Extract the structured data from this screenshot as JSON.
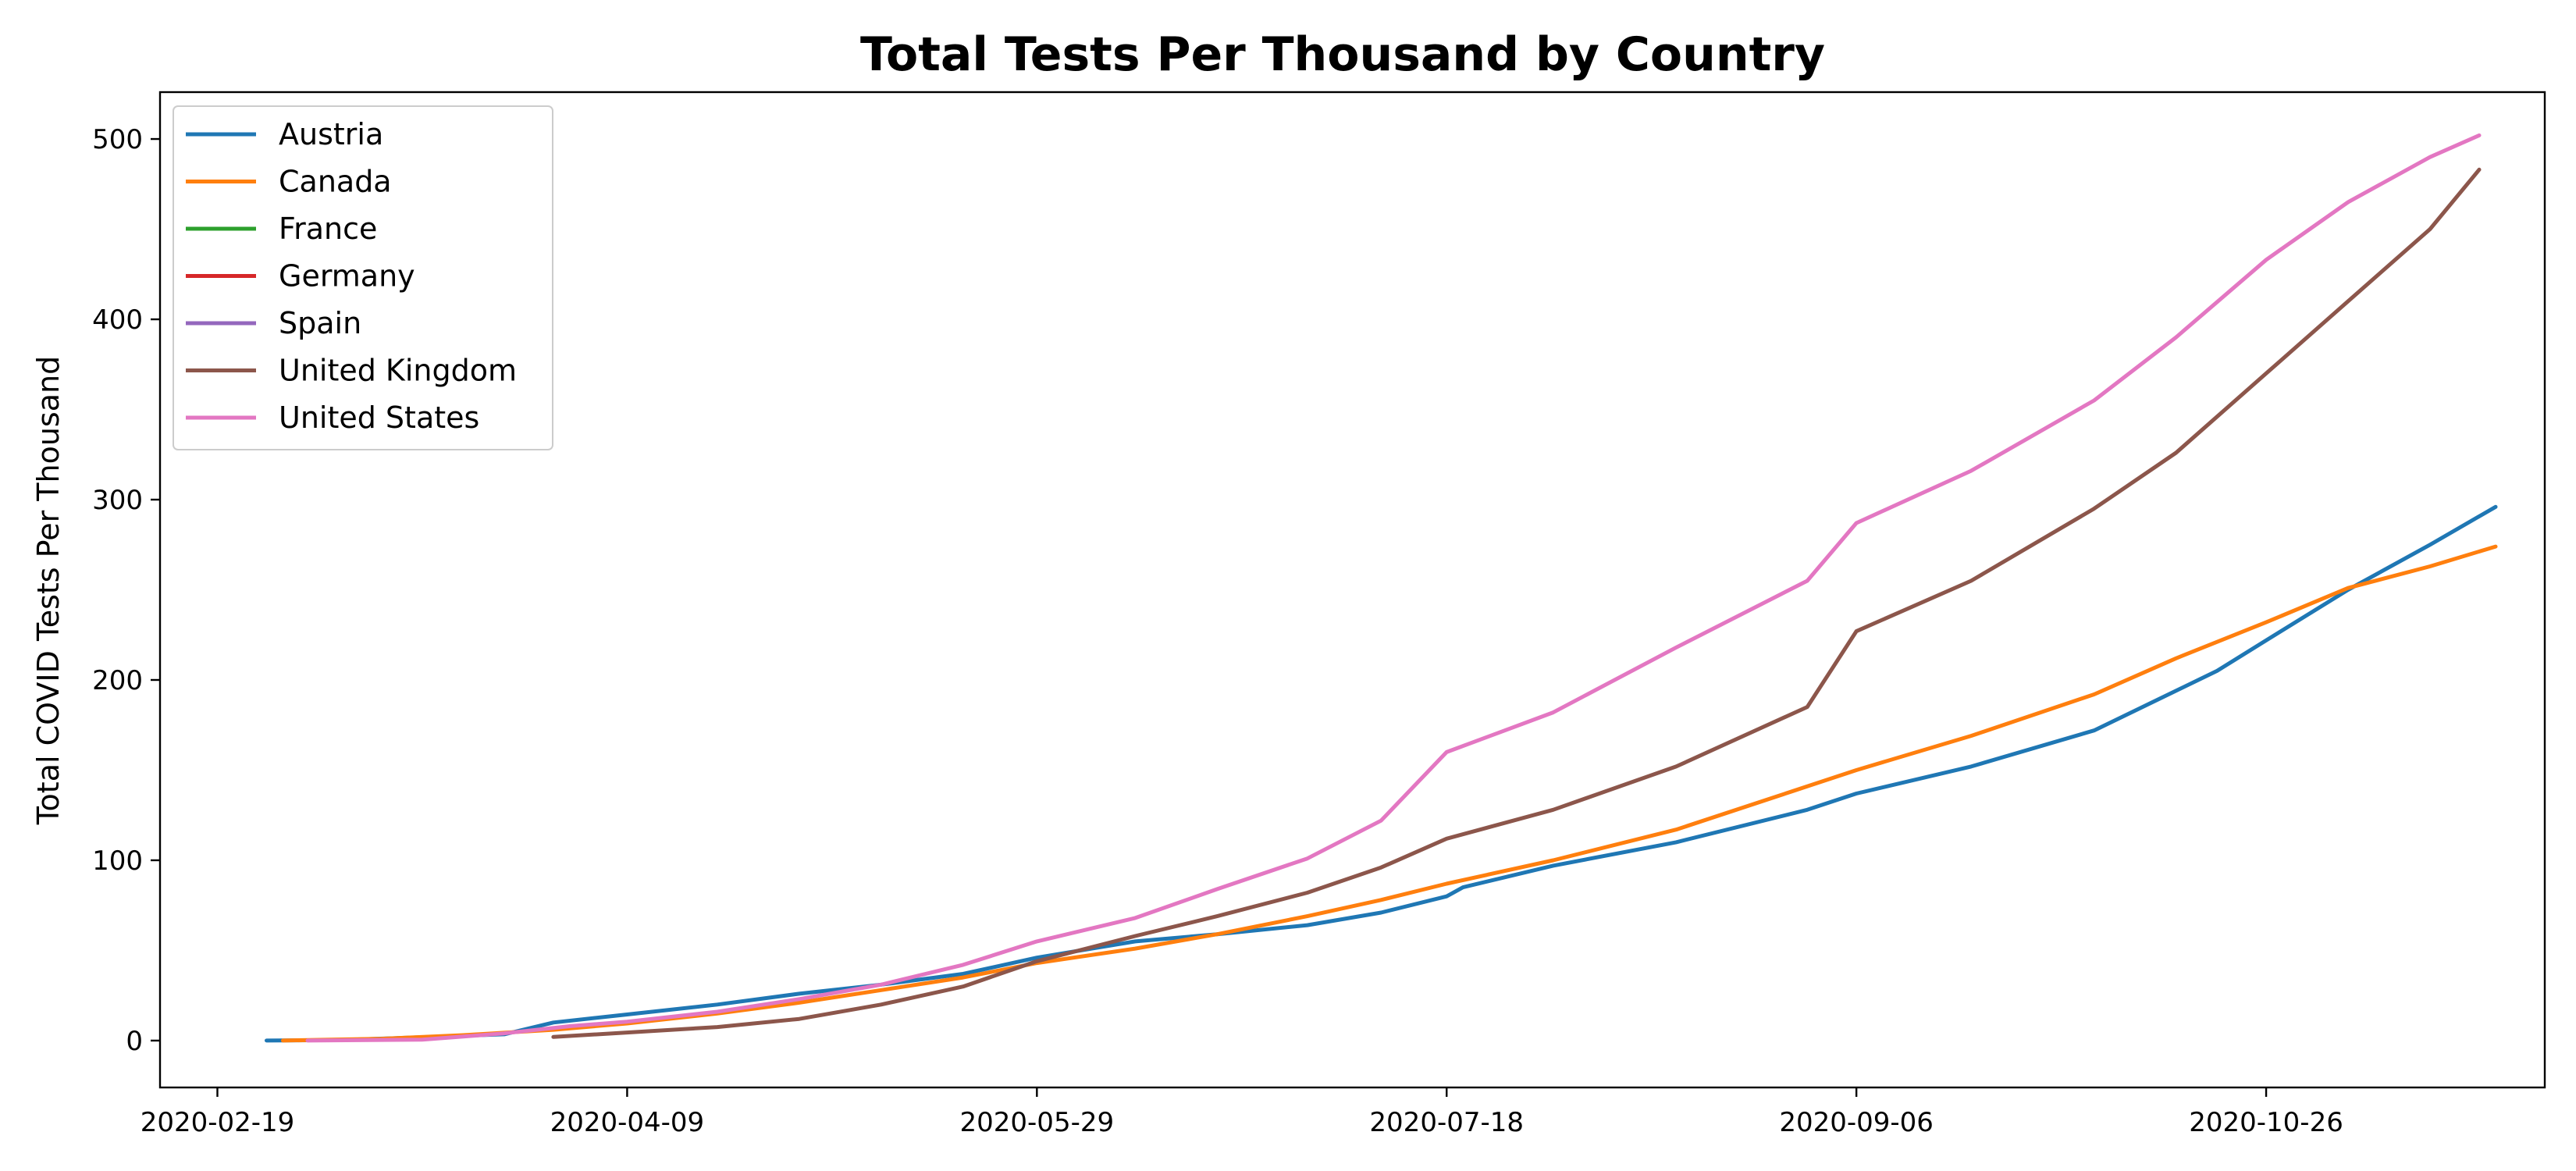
{
  "chart_data": {
    "type": "line",
    "title": "Total Tests Per Thousand by Country",
    "xlabel": "",
    "ylabel": "Total COVID Tests Per Thousand",
    "x_ticks": [
      "2020-02-19",
      "2020-04-09",
      "2020-05-29",
      "2020-07-18",
      "2020-09-06",
      "2020-10-26"
    ],
    "y_ticks": [
      0,
      100,
      200,
      300,
      400,
      500
    ],
    "xlim": [
      "2020-02-12",
      "2020-11-29"
    ],
    "ylim": [
      -26,
      526
    ],
    "legend_position": "top-left",
    "grid": false,
    "series": [
      {
        "name": "Austria",
        "color": "#1f77b4",
        "points": [
          [
            "2020-02-25",
            0
          ],
          [
            "2020-03-05",
            0.3
          ],
          [
            "2020-03-25",
            3.5
          ],
          [
            "2020-03-31",
            10
          ],
          [
            "2020-04-09",
            14.5
          ],
          [
            "2020-04-20",
            20
          ],
          [
            "2020-04-30",
            26
          ],
          [
            "2020-05-10",
            31
          ],
          [
            "2020-05-20",
            37
          ],
          [
            "2020-05-29",
            46
          ],
          [
            "2020-06-10",
            55
          ],
          [
            "2020-06-20",
            59
          ],
          [
            "2020-07-01",
            64
          ],
          [
            "2020-07-10",
            71
          ],
          [
            "2020-07-18",
            80
          ],
          [
            "2020-07-20",
            85
          ],
          [
            "2020-07-31",
            97
          ],
          [
            "2020-08-15",
            110
          ],
          [
            "2020-08-31",
            128
          ],
          [
            "2020-09-06",
            137
          ],
          [
            "2020-09-20",
            152
          ],
          [
            "2020-10-05",
            172
          ],
          [
            "2020-10-20",
            205
          ],
          [
            "2020-10-26",
            222
          ],
          [
            "2020-11-05",
            250
          ],
          [
            "2020-11-15",
            275
          ],
          [
            "2020-11-23",
            296
          ]
        ]
      },
      {
        "name": "Canada",
        "color": "#ff7f0e",
        "points": [
          [
            "2020-02-27",
            0
          ],
          [
            "2020-03-10",
            1
          ],
          [
            "2020-03-20",
            3
          ],
          [
            "2020-03-31",
            6
          ],
          [
            "2020-04-09",
            9.5
          ],
          [
            "2020-04-20",
            15
          ],
          [
            "2020-04-30",
            21
          ],
          [
            "2020-05-10",
            28
          ],
          [
            "2020-05-20",
            35
          ],
          [
            "2020-05-29",
            43
          ],
          [
            "2020-06-10",
            51
          ],
          [
            "2020-06-20",
            59
          ],
          [
            "2020-07-01",
            69
          ],
          [
            "2020-07-10",
            78
          ],
          [
            "2020-07-18",
            87
          ],
          [
            "2020-07-31",
            100
          ],
          [
            "2020-08-15",
            117
          ],
          [
            "2020-08-31",
            141
          ],
          [
            "2020-09-06",
            150
          ],
          [
            "2020-09-20",
            169
          ],
          [
            "2020-10-05",
            192
          ],
          [
            "2020-10-15",
            212
          ],
          [
            "2020-10-26",
            232
          ],
          [
            "2020-11-05",
            251
          ],
          [
            "2020-11-15",
            263
          ],
          [
            "2020-11-23",
            274
          ]
        ]
      },
      {
        "name": "France",
        "color": "#2ca02c",
        "points": []
      },
      {
        "name": "Germany",
        "color": "#d62728",
        "points": []
      },
      {
        "name": "Spain",
        "color": "#9467bd",
        "points": []
      },
      {
        "name": "United Kingdom",
        "color": "#8c564b",
        "points": [
          [
            "2020-03-31",
            2
          ],
          [
            "2020-04-09",
            4.5
          ],
          [
            "2020-04-20",
            7.5
          ],
          [
            "2020-04-30",
            12
          ],
          [
            "2020-05-10",
            20
          ],
          [
            "2020-05-20",
            30
          ],
          [
            "2020-05-29",
            44
          ],
          [
            "2020-06-10",
            58
          ],
          [
            "2020-06-20",
            69
          ],
          [
            "2020-07-01",
            82
          ],
          [
            "2020-07-10",
            96
          ],
          [
            "2020-07-18",
            112
          ],
          [
            "2020-07-31",
            128
          ],
          [
            "2020-08-15",
            152
          ],
          [
            "2020-08-31",
            185
          ],
          [
            "2020-09-06",
            227
          ],
          [
            "2020-09-20",
            255
          ],
          [
            "2020-10-05",
            295
          ],
          [
            "2020-10-15",
            326
          ],
          [
            "2020-10-26",
            370
          ],
          [
            "2020-11-05",
            410
          ],
          [
            "2020-11-15",
            450
          ],
          [
            "2020-11-21",
            483
          ]
        ]
      },
      {
        "name": "United States",
        "color": "#e377c2",
        "points": [
          [
            "2020-03-01",
            0
          ],
          [
            "2020-03-15",
            0.5
          ],
          [
            "2020-03-25",
            4
          ],
          [
            "2020-04-02",
            8
          ],
          [
            "2020-04-09",
            10.5
          ],
          [
            "2020-04-20",
            16
          ],
          [
            "2020-04-30",
            23
          ],
          [
            "2020-05-10",
            31
          ],
          [
            "2020-05-20",
            42
          ],
          [
            "2020-05-29",
            55
          ],
          [
            "2020-06-10",
            68
          ],
          [
            "2020-06-20",
            84
          ],
          [
            "2020-07-01",
            101
          ],
          [
            "2020-07-10",
            122
          ],
          [
            "2020-07-18",
            160
          ],
          [
            "2020-07-31",
            182
          ],
          [
            "2020-08-15",
            218
          ],
          [
            "2020-08-31",
            255
          ],
          [
            "2020-09-06",
            287
          ],
          [
            "2020-09-20",
            316
          ],
          [
            "2020-10-05",
            355
          ],
          [
            "2020-10-15",
            390
          ],
          [
            "2020-10-26",
            433
          ],
          [
            "2020-11-05",
            465
          ],
          [
            "2020-11-15",
            490
          ],
          [
            "2020-11-21",
            502
          ]
        ]
      }
    ]
  }
}
